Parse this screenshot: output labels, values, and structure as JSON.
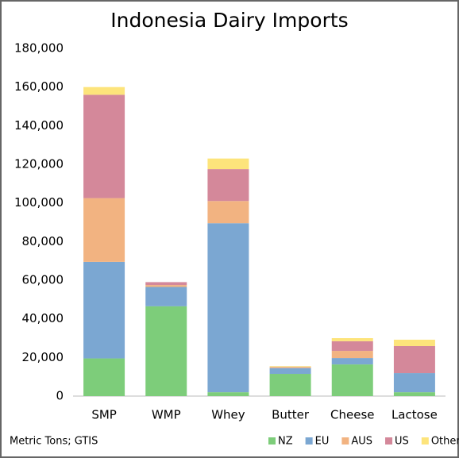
{
  "chart_data": {
    "type": "stacked_bar",
    "title": "Indonesia Dairy Imports",
    "annotation": "Metric Tons; GTIS",
    "categories": [
      "SMP",
      "WMP",
      "Whey",
      "Butter",
      "Cheese",
      "Lactose"
    ],
    "series": [
      {
        "name": "NZ",
        "color": "#7dcd7a",
        "values": [
          19500,
          46500,
          2000,
          11500,
          16400,
          2000
        ]
      },
      {
        "name": "EU",
        "color": "#7ba7d2",
        "values": [
          50000,
          10000,
          87500,
          3000,
          3300,
          9900
        ]
      },
      {
        "name": "AUS",
        "color": "#f2b381",
        "values": [
          33000,
          1000,
          11500,
          300,
          3700,
          0
        ]
      },
      {
        "name": "US",
        "color": "#d4889a",
        "values": [
          53500,
          1500,
          16500,
          200,
          5000,
          14000
        ]
      },
      {
        "name": "Other",
        "color": "#fde47b",
        "values": [
          4000,
          0,
          5500,
          500,
          1600,
          3300
        ]
      }
    ],
    "ylim": [
      0,
      180000
    ],
    "yticks": [
      0,
      {
        "value": 20000,
        "label": "20,000"
      },
      {
        "value": 40000,
        "label": "40,000"
      },
      {
        "value": 60000,
        "label": "60,000"
      },
      {
        "value": 80000,
        "label": "80,000"
      },
      {
        "value": 100000,
        "label": "100,000"
      },
      {
        "value": 120000,
        "label": "120,000"
      },
      {
        "value": 140000,
        "label": "140,000"
      },
      {
        "value": 160000,
        "label": "160,000"
      },
      {
        "value": 180000,
        "label": "180,000"
      }
    ],
    "legend": "bottom-right"
  }
}
